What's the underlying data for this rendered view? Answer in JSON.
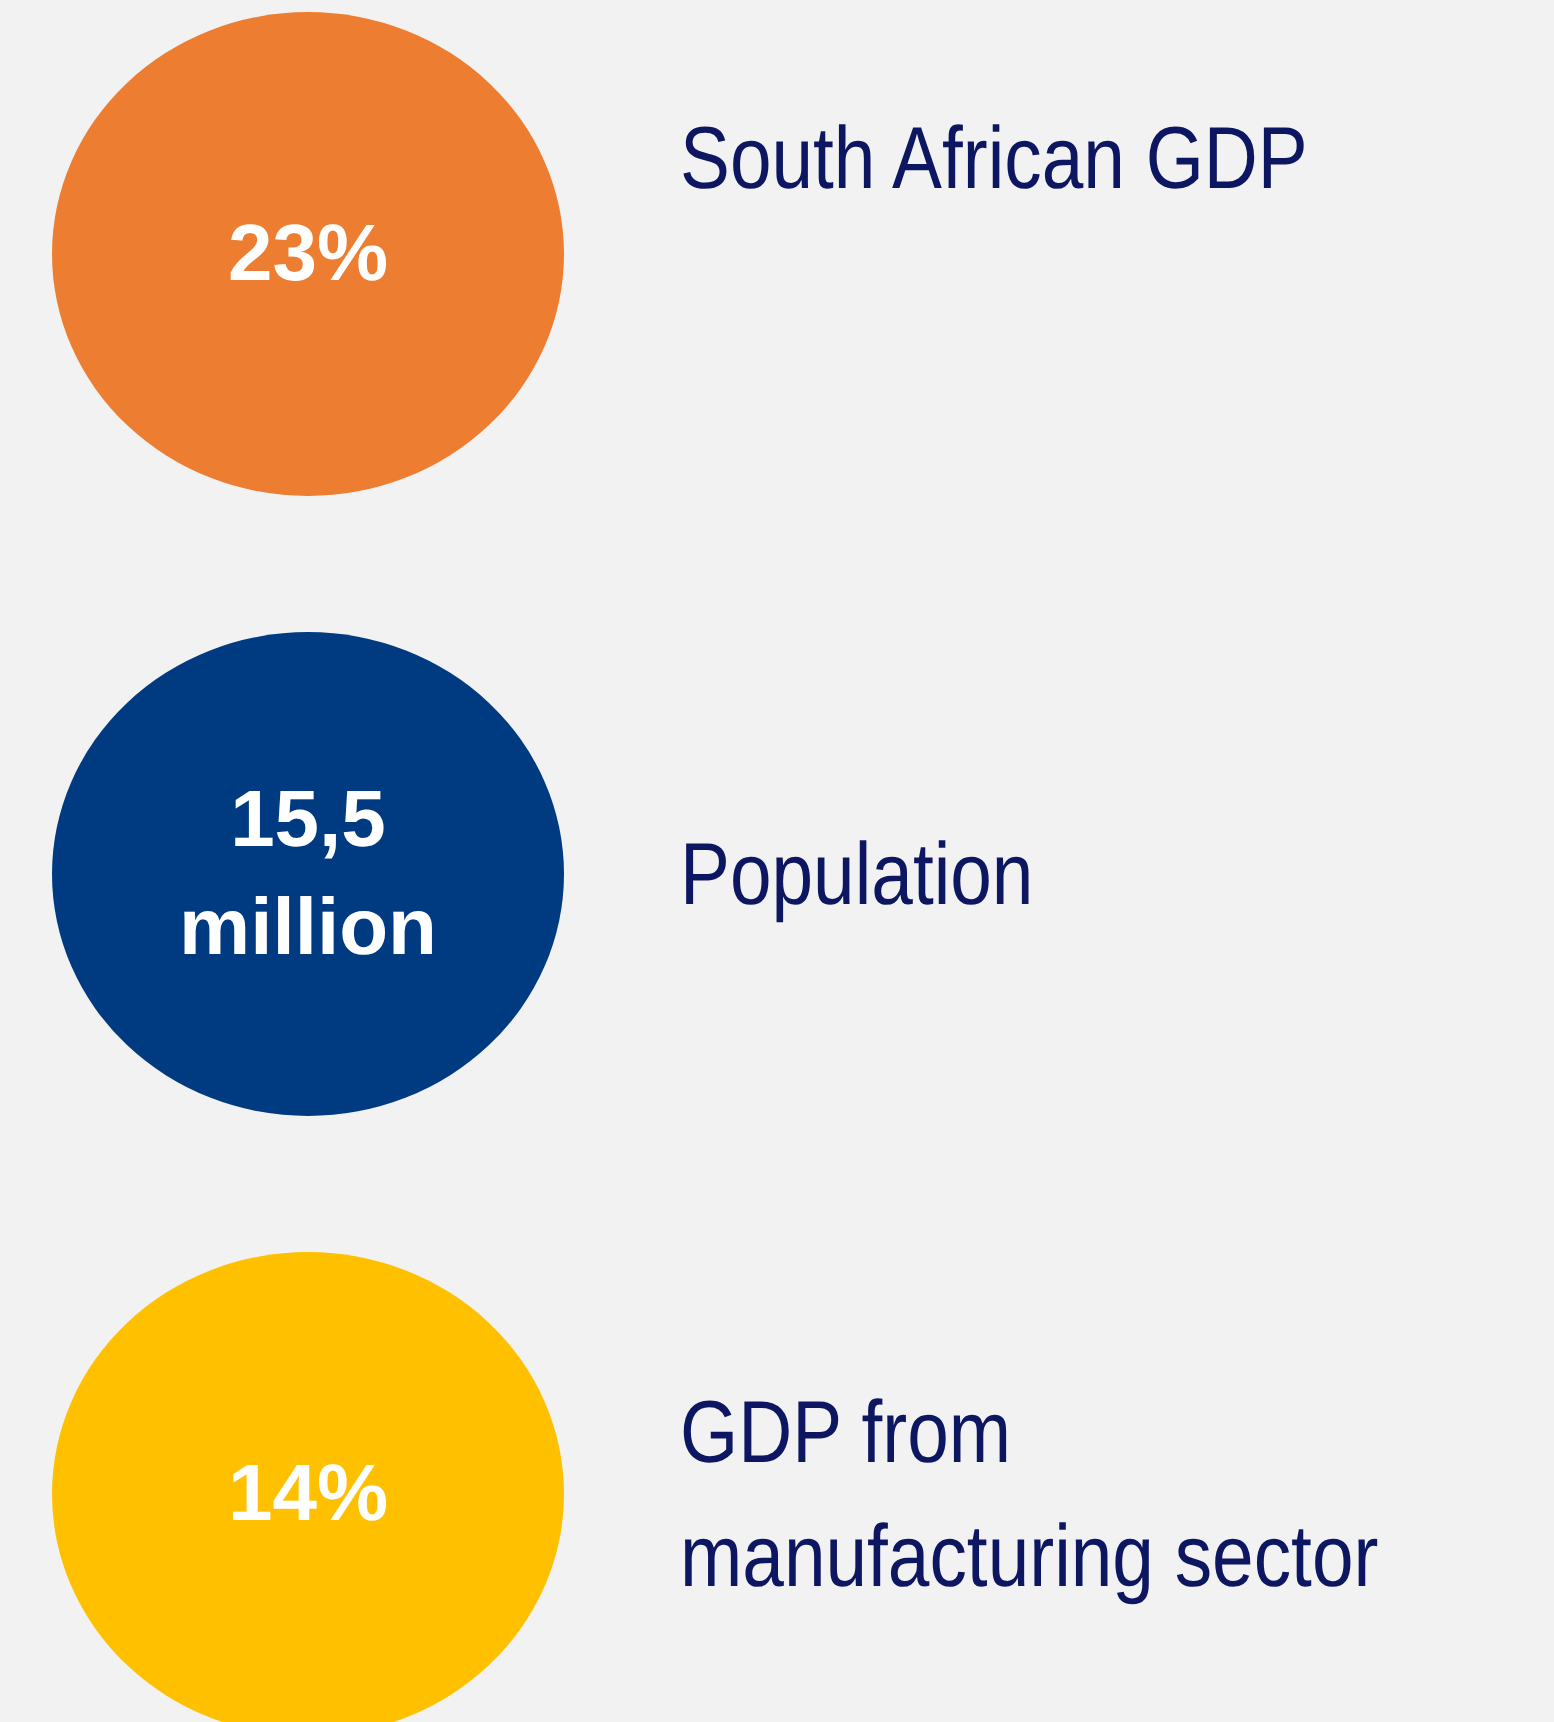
{
  "chart_data": {
    "type": "other",
    "categories": [
      "South African GDP",
      "Population",
      "GDP from manufacturing sector"
    ],
    "values": [
      23,
      15.5,
      14
    ],
    "value_labels": [
      "23%",
      "15,5 million",
      "14%"
    ],
    "colors": [
      "#ed7d31",
      "#003a80",
      "#ffc000"
    ]
  }
}
